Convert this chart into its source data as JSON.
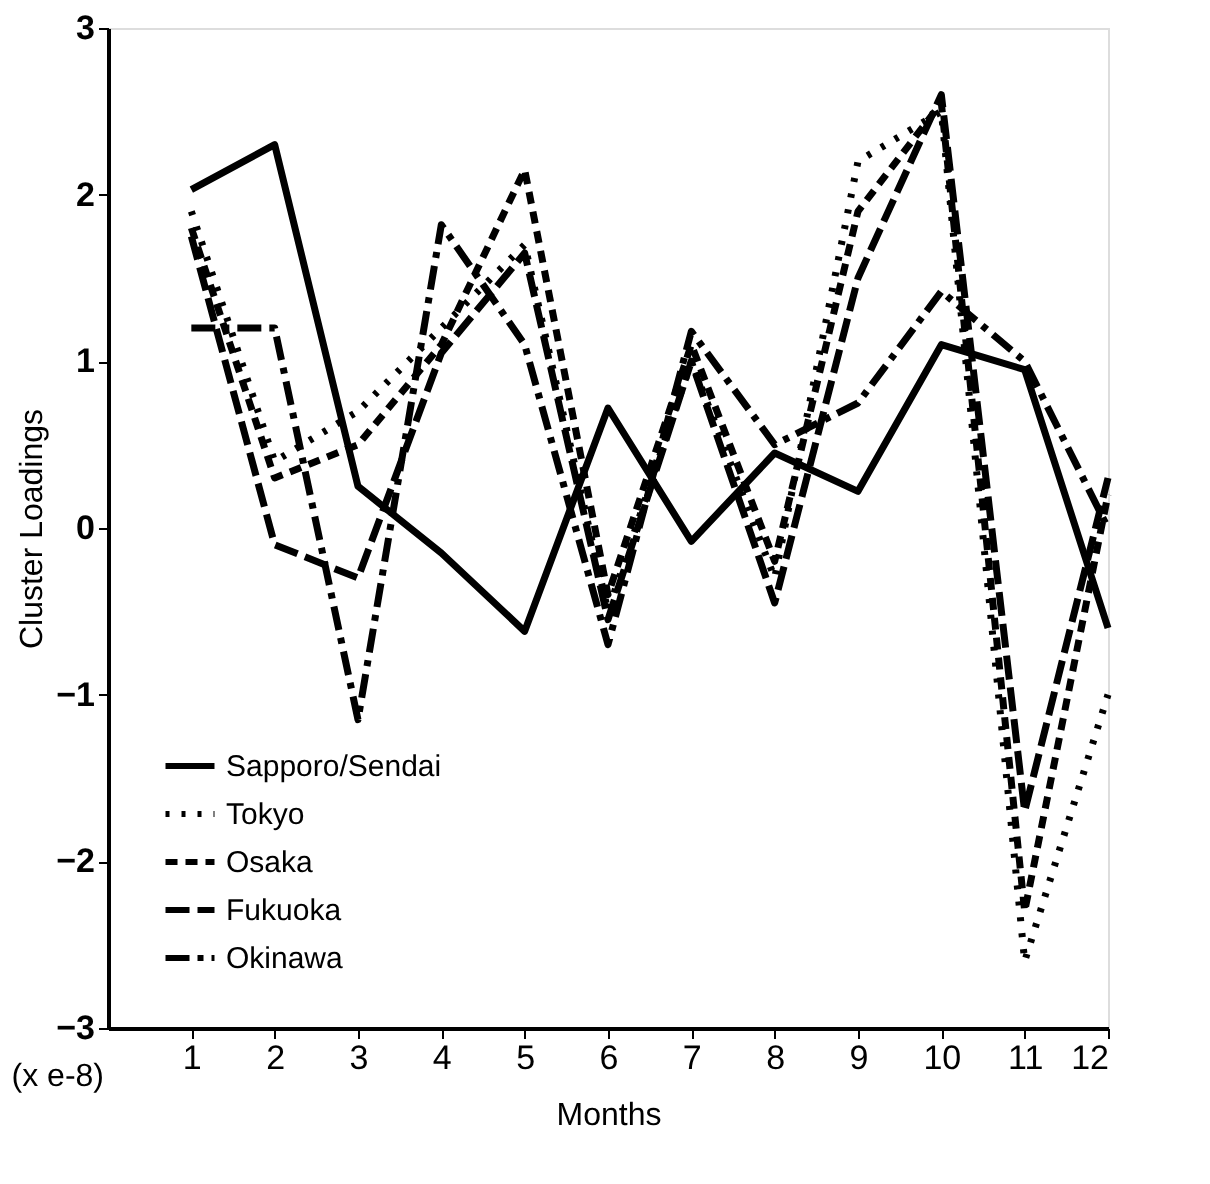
{
  "chart_data": {
    "type": "line",
    "xlabel": "Months",
    "ylabel": "Cluster Loadings",
    "x": [
      1,
      2,
      3,
      4,
      5,
      6,
      7,
      8,
      9,
      10,
      11,
      12
    ],
    "xlim": [
      0,
      12
    ],
    "xticks": [
      1,
      2,
      3,
      4,
      5,
      6,
      7,
      8,
      9,
      10,
      11,
      12
    ],
    "ylim": [
      -3,
      3
    ],
    "yticks": [
      -3,
      -2,
      -1,
      0,
      1,
      2,
      3
    ],
    "grid": false,
    "legend": "bottom left",
    "marker": "none",
    "annotations": [
      "(x e-8)"
    ],
    "series": [
      {
        "name": "Sapporo/Sendai",
        "color": "#000000",
        "line_style": "solid",
        "values": [
          2.03,
          2.3,
          0.25,
          -0.15,
          -0.62,
          0.72,
          -0.08,
          0.45,
          0.22,
          1.1,
          0.95,
          -0.6
        ]
      },
      {
        "name": "Tokyo",
        "color": "#000000",
        "line_style": "dotted",
        "values": [
          1.9,
          0.4,
          0.7,
          1.2,
          1.7,
          -0.5,
          1.0,
          -0.3,
          2.2,
          2.5,
          -2.6,
          -1.0
        ]
      },
      {
        "name": "Osaka",
        "color": "#000000",
        "line_style": "dashed",
        "values": [
          1.8,
          0.3,
          0.5,
          1.1,
          2.15,
          -0.4,
          1.1,
          -0.2,
          1.9,
          2.55,
          -2.3,
          0.2
        ]
      },
      {
        "name": "Fukuoka",
        "color": "#000000",
        "line_style": "longdash",
        "values": [
          1.75,
          -0.1,
          -0.3,
          1.05,
          1.65,
          -0.55,
          1.0,
          -0.45,
          1.5,
          2.6,
          -1.7,
          0.3
        ]
      },
      {
        "name": "Okinawa",
        "color": "#000000",
        "line_style": "dashdot",
        "values": [
          1.2,
          1.2,
          -1.15,
          1.82,
          1.1,
          -0.7,
          1.18,
          0.5,
          0.75,
          1.42,
          1.0,
          0.0
        ]
      }
    ]
  }
}
